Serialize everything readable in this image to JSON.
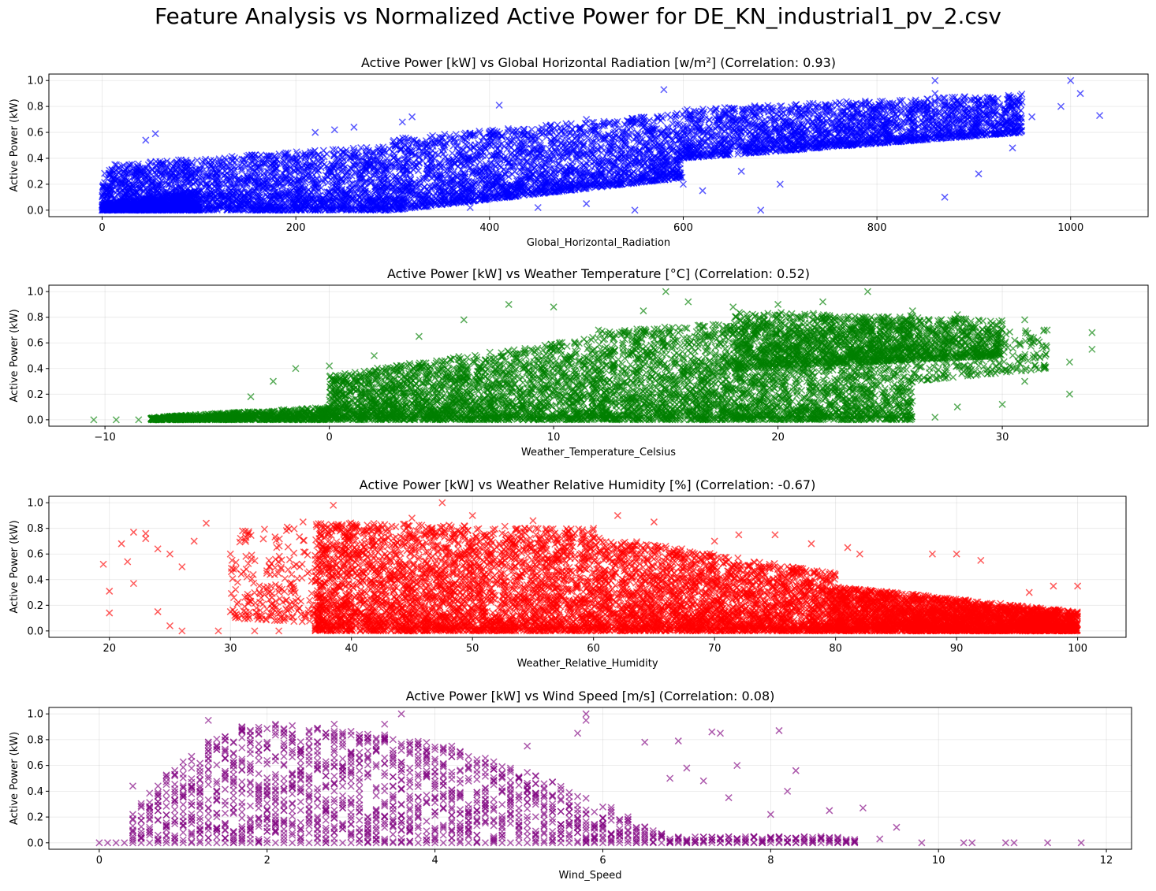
{
  "suptitle": "Feature Analysis vs Normalized Active Power for DE_KN_industrial1_pv_2.csv",
  "chart_data": [
    {
      "type": "scatter",
      "title": "Active Power [kW] vs Global Horizontal Radiation [w/m²] (Correlation: 0.93)",
      "xlabel": "Global_Horizontal_Radiation",
      "ylabel": "Active Power (kW)",
      "xlim": [
        -55,
        1080
      ],
      "ylim": [
        -0.05,
        1.05
      ],
      "xticks": [
        0,
        200,
        400,
        600,
        800,
        1000
      ],
      "yticks": [
        0.0,
        0.2,
        0.4,
        0.6,
        0.8,
        1.0
      ],
      "grid": true,
      "marker": "x",
      "color": "#0000ff",
      "points": [
        [
          0,
          0.0
        ],
        [
          5,
          0.01
        ],
        [
          10,
          0.02
        ],
        [
          15,
          0.01
        ],
        [
          20,
          0.03
        ],
        [
          25,
          0.02
        ],
        [
          30,
          0.04
        ],
        [
          40,
          0.05
        ],
        [
          50,
          0.06
        ],
        [
          55,
          0.59
        ],
        [
          45,
          0.54
        ],
        [
          60,
          0.08
        ],
        [
          70,
          0.1
        ],
        [
          80,
          0.12
        ],
        [
          90,
          0.14
        ],
        [
          100,
          0.15
        ],
        [
          110,
          0.18
        ],
        [
          120,
          0.2
        ],
        [
          130,
          0.22
        ],
        [
          140,
          0.24
        ],
        [
          150,
          0.26
        ],
        [
          160,
          0.28
        ],
        [
          170,
          0.3
        ],
        [
          180,
          0.32
        ],
        [
          190,
          0.36
        ],
        [
          200,
          0.4
        ],
        [
          210,
          0.42
        ],
        [
          220,
          0.6
        ],
        [
          240,
          0.62
        ],
        [
          260,
          0.64
        ],
        [
          280,
          0.45
        ],
        [
          300,
          0.5
        ],
        [
          310,
          0.68
        ],
        [
          320,
          0.72
        ],
        [
          340,
          0.4
        ],
        [
          360,
          0.55
        ],
        [
          380,
          0.58
        ],
        [
          400,
          0.6
        ],
        [
          410,
          0.81
        ],
        [
          420,
          0.5
        ],
        [
          440,
          0.55
        ],
        [
          460,
          0.6
        ],
        [
          480,
          0.65
        ],
        [
          500,
          0.7
        ],
        [
          520,
          0.55
        ],
        [
          540,
          0.6
        ],
        [
          560,
          0.65
        ],
        [
          580,
          0.93
        ],
        [
          590,
          0.3
        ],
        [
          600,
          0.5
        ],
        [
          620,
          0.62
        ],
        [
          640,
          0.7
        ],
        [
          660,
          0.6
        ],
        [
          680,
          0.65
        ],
        [
          700,
          0.8
        ],
        [
          720,
          0.75
        ],
        [
          740,
          0.7
        ],
        [
          760,
          0.72
        ],
        [
          780,
          0.75
        ],
        [
          800,
          0.78
        ],
        [
          820,
          0.8
        ],
        [
          840,
          0.85
        ],
        [
          860,
          0.9
        ],
        [
          880,
          0.82
        ],
        [
          900,
          0.85
        ],
        [
          920,
          0.75
        ],
        [
          940,
          0.8
        ],
        [
          960,
          0.72
        ],
        [
          990,
          0.8
        ],
        [
          1010,
          0.9
        ],
        [
          1030,
          0.73
        ],
        [
          870,
          0.1
        ],
        [
          905,
          0.28
        ],
        [
          940,
          0.48
        ],
        [
          700,
          0.2
        ],
        [
          680,
          0.0
        ],
        [
          550,
          0.0
        ],
        [
          500,
          0.05
        ],
        [
          450,
          0.02
        ],
        [
          400,
          0.1
        ],
        [
          380,
          0.02
        ],
        [
          350,
          0.05
        ],
        [
          600,
          0.2
        ],
        [
          620,
          0.15
        ],
        [
          660,
          0.3
        ],
        [
          1000,
          1.0
        ],
        [
          860,
          1.0
        ]
      ],
      "density": [
        {
          "x": [
            0,
            300
          ],
          "ylow": [
            0.0,
            0.0
          ],
          "yhigh": [
            0.35,
            0.5
          ],
          "n": 2200
        },
        {
          "x": [
            300,
            600
          ],
          "ylow": [
            0.0,
            0.25
          ],
          "yhigh": [
            0.55,
            0.75
          ],
          "n": 2200
        },
        {
          "x": [
            600,
            950
          ],
          "ylow": [
            0.4,
            0.6
          ],
          "yhigh": [
            0.78,
            0.9
          ],
          "n": 2000
        },
        {
          "x": [
            0,
            100
          ],
          "ylow": [
            0.0,
            0.0
          ],
          "yhigh": [
            0.05,
            0.15
          ],
          "n": 800
        }
      ]
    },
    {
      "type": "scatter",
      "title": "Active Power [kW] vs Weather Temperature [°C] (Correlation: 0.52)",
      "xlabel": "Weather_Temperature_Celsius",
      "ylabel": "Active Power (kW)",
      "xlim": [
        -12.5,
        36.5
      ],
      "ylim": [
        -0.05,
        1.05
      ],
      "xticks": [
        -10,
        0,
        10,
        20,
        30
      ],
      "yticks": [
        0.0,
        0.2,
        0.4,
        0.6,
        0.8,
        1.0
      ],
      "grid": true,
      "marker": "x",
      "color": "#008000",
      "points": [
        [
          -10.5,
          0.0
        ],
        [
          -9.5,
          0.0
        ],
        [
          -8.5,
          0.0
        ],
        [
          -7.5,
          0.0
        ],
        [
          -6,
          0.0
        ],
        [
          -4,
          0.0
        ],
        [
          -3.5,
          0.18
        ],
        [
          -2.5,
          0.3
        ],
        [
          -1.5,
          0.4
        ],
        [
          0,
          0.42
        ],
        [
          2,
          0.5
        ],
        [
          4,
          0.65
        ],
        [
          6,
          0.78
        ],
        [
          8,
          0.9
        ],
        [
          10,
          0.88
        ],
        [
          12,
          0.7
        ],
        [
          14,
          0.85
        ],
        [
          15,
          1.0
        ],
        [
          16,
          0.92
        ],
        [
          18,
          0.88
        ],
        [
          20,
          0.9
        ],
        [
          22,
          0.92
        ],
        [
          24,
          1.0
        ],
        [
          26,
          0.85
        ],
        [
          28,
          0.82
        ],
        [
          30,
          0.75
        ],
        [
          31,
          0.78
        ],
        [
          32,
          0.7
        ],
        [
          33,
          0.45
        ],
        [
          34,
          0.55
        ],
        [
          34,
          0.68
        ],
        [
          33,
          0.2
        ],
        [
          30,
          0.12
        ],
        [
          31,
          0.3
        ],
        [
          28,
          0.1
        ],
        [
          27,
          0.02
        ],
        [
          25,
          0.05
        ]
      ],
      "density": [
        {
          "x": [
            -8,
            0
          ],
          "ylow": [
            0.0,
            0.0
          ],
          "yhigh": [
            0.02,
            0.1
          ],
          "n": 900
        },
        {
          "x": [
            0,
            12
          ],
          "ylow": [
            0.0,
            0.0
          ],
          "yhigh": [
            0.35,
            0.65
          ],
          "n": 2200
        },
        {
          "x": [
            12,
            26
          ],
          "ylow": [
            0.0,
            0.0
          ],
          "yhigh": [
            0.7,
            0.82
          ],
          "n": 2800
        },
        {
          "x": [
            18,
            30
          ],
          "ylow": [
            0.4,
            0.5
          ],
          "yhigh": [
            0.85,
            0.78
          ],
          "n": 1400
        },
        {
          "x": [
            26,
            32
          ],
          "ylow": [
            0.3,
            0.4
          ],
          "yhigh": [
            0.75,
            0.7
          ],
          "n": 250
        }
      ]
    },
    {
      "type": "scatter",
      "title": "Active Power [kW] vs Weather Relative Humidity [%] (Correlation: -0.67)",
      "xlabel": "Weather_Relative_Humidity",
      "ylabel": "Active Power (kW)",
      "xlim": [
        15,
        104
      ],
      "ylim": [
        -0.05,
        1.05
      ],
      "xticks": [
        20,
        30,
        40,
        50,
        60,
        70,
        80,
        90,
        100
      ],
      "yticks": [
        0.0,
        0.2,
        0.4,
        0.6,
        0.8,
        1.0
      ],
      "grid": true,
      "marker": "x",
      "color": "#ff0000",
      "points": [
        [
          19.5,
          0.52
        ],
        [
          20,
          0.31
        ],
        [
          20,
          0.14
        ],
        [
          21,
          0.68
        ],
        [
          21.5,
          0.54
        ],
        [
          22,
          0.77
        ],
        [
          22,
          0.37
        ],
        [
          23,
          0.72
        ],
        [
          23,
          0.76
        ],
        [
          24,
          0.15
        ],
        [
          24,
          0.64
        ],
        [
          25,
          0.04
        ],
        [
          25,
          0.6
        ],
        [
          26,
          0.0
        ],
        [
          26,
          0.5
        ],
        [
          27,
          0.7
        ],
        [
          28,
          0.84
        ],
        [
          29,
          0.0
        ],
        [
          30,
          0.15
        ],
        [
          30,
          0.6
        ],
        [
          31,
          0.78
        ],
        [
          32,
          0.0
        ],
        [
          33,
          0.45
        ],
        [
          34,
          0.0
        ],
        [
          35,
          0.3
        ],
        [
          36,
          0.85
        ],
        [
          37,
          0.02
        ],
        [
          38.5,
          0.98
        ],
        [
          40,
          0.8
        ],
        [
          45,
          0.88
        ],
        [
          47.5,
          1.0
        ],
        [
          50,
          0.9
        ],
        [
          55,
          0.86
        ],
        [
          60,
          0.8
        ],
        [
          62,
          0.9
        ],
        [
          65,
          0.85
        ],
        [
          70,
          0.7
        ],
        [
          72,
          0.75
        ],
        [
          75,
          0.75
        ],
        [
          78,
          0.68
        ],
        [
          81,
          0.65
        ],
        [
          82,
          0.6
        ],
        [
          88,
          0.6
        ],
        [
          90,
          0.6
        ],
        [
          92,
          0.55
        ],
        [
          96,
          0.3
        ],
        [
          98,
          0.35
        ],
        [
          100,
          0.35
        ]
      ],
      "density": [
        {
          "x": [
            37,
            60
          ],
          "ylow": [
            0.0,
            0.0
          ],
          "yhigh": [
            0.85,
            0.8
          ],
          "n": 3000
        },
        {
          "x": [
            60,
            80
          ],
          "ylow": [
            0.0,
            0.0
          ],
          "yhigh": [
            0.75,
            0.45
          ],
          "n": 2500
        },
        {
          "x": [
            80,
            100
          ],
          "ylow": [
            0.0,
            0.0
          ],
          "yhigh": [
            0.35,
            0.15
          ],
          "n": 3000
        },
        {
          "x": [
            30,
            40
          ],
          "ylow": [
            0.1,
            0.05
          ],
          "yhigh": [
            0.8,
            0.85
          ],
          "n": 300
        }
      ]
    },
    {
      "type": "scatter",
      "title": "Active Power [kW] vs Wind Speed [m/s] (Correlation: 0.08)",
      "xlabel": "Wind_Speed",
      "ylabel": "Active Power (kW)",
      "xlim": [
        -0.6,
        12.3
      ],
      "ylim": [
        -0.05,
        1.05
      ],
      "xticks": [
        0,
        2,
        4,
        6,
        8,
        10,
        12
      ],
      "yticks": [
        0.0,
        0.2,
        0.4,
        0.6,
        0.8,
        1.0
      ],
      "grid": true,
      "marker": "x",
      "color": "#800080",
      "points": [
        [
          0,
          0.0
        ],
        [
          0.1,
          0.0
        ],
        [
          0.2,
          0.0
        ],
        [
          0.3,
          0.0
        ],
        [
          0.4,
          0.44
        ],
        [
          1.3,
          0.95
        ],
        [
          1.7,
          0.9
        ],
        [
          2.1,
          0.92
        ],
        [
          2.8,
          0.92
        ],
        [
          3.4,
          0.92
        ],
        [
          3.6,
          1.0
        ],
        [
          4.2,
          0.75
        ],
        [
          5.1,
          0.75
        ],
        [
          5.7,
          0.85
        ],
        [
          5.8,
          1.0
        ],
        [
          5.8,
          0.95
        ],
        [
          6.5,
          0.78
        ],
        [
          6.9,
          0.79
        ],
        [
          7.0,
          0.58
        ],
        [
          7.3,
          0.86
        ],
        [
          7.4,
          0.85
        ],
        [
          7.6,
          0.6
        ],
        [
          8.1,
          0.87
        ],
        [
          8.2,
          0.4
        ],
        [
          8.3,
          0.56
        ],
        [
          8.7,
          0.25
        ],
        [
          9.1,
          0.27
        ],
        [
          9.5,
          0.12
        ],
        [
          8.0,
          0.22
        ],
        [
          7.5,
          0.35
        ],
        [
          7.2,
          0.48
        ],
        [
          6.8,
          0.5
        ],
        [
          9.3,
          0.03
        ],
        [
          9.8,
          0.0
        ],
        [
          10.3,
          0.0
        ],
        [
          10.4,
          0.0
        ],
        [
          10.8,
          0.0
        ],
        [
          10.9,
          0.0
        ],
        [
          11.3,
          0.0
        ],
        [
          11.7,
          0.0
        ]
      ],
      "columns": {
        "xstart": 0.4,
        "xend": 9.0,
        "step": 0.1,
        "peak": 2.0
      },
      "density": []
    }
  ]
}
